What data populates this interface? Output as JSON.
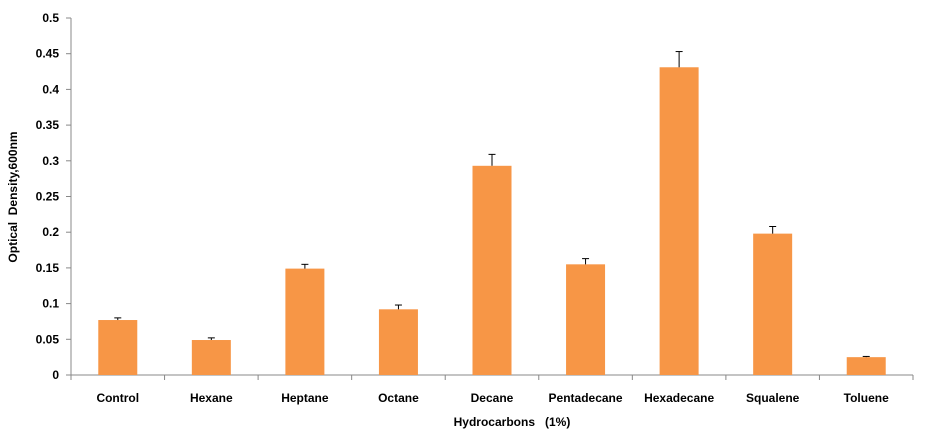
{
  "chart_data": {
    "type": "bar",
    "title": "",
    "xlabel": "Hydrocarbons   (1%)",
    "ylabel": "Optical  Density,600nm",
    "categories": [
      "Control",
      "Hexane",
      "Heptane",
      "Octane",
      "Decane",
      "Pentadecane",
      "Hexadecane",
      "Squalene",
      "Toluene"
    ],
    "values": [
      0.077,
      0.049,
      0.149,
      0.092,
      0.293,
      0.155,
      0.431,
      0.198,
      0.025
    ],
    "error_upper": [
      0.003,
      0.003,
      0.006,
      0.006,
      0.016,
      0.008,
      0.022,
      0.01,
      0.001
    ],
    "ylim": [
      0,
      0.5
    ],
    "yticks": [
      "0",
      "0.05",
      "0.1",
      "0.15",
      "0.2",
      "0.25",
      "0.3",
      "0.35",
      "0.4",
      "0.45",
      "0.5"
    ],
    "grid": false,
    "legend": "none",
    "bar_color": "#F79646",
    "axis_color": "#888888"
  }
}
